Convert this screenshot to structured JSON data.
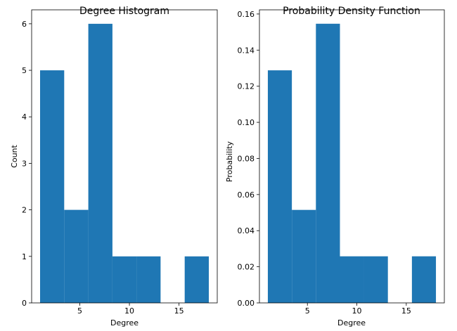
{
  "chart_data": [
    {
      "type": "bar",
      "title": "Degree Histogram",
      "xlabel": "Degree",
      "ylabel": "Count",
      "bin_edges": [
        1,
        3.43,
        5.86,
        8.29,
        10.71,
        13.14,
        15.57,
        18
      ],
      "values": [
        5,
        2,
        6,
        1,
        1,
        0,
        1
      ],
      "xlim": [
        0.15,
        18.85
      ],
      "ylim": [
        0,
        6.3
      ],
      "xticks": [
        5,
        10,
        15
      ],
      "yticks": [
        0,
        1,
        2,
        3,
        4,
        5,
        6
      ],
      "xtick_labels": [
        "5",
        "10",
        "15"
      ],
      "ytick_labels": [
        "0",
        "1",
        "2",
        "3",
        "4",
        "5",
        "6"
      ],
      "color": "#1f77b4",
      "grid": false
    },
    {
      "type": "bar",
      "title": "Probability Density Function",
      "xlabel": "Degree",
      "ylabel": "Probability",
      "bin_edges": [
        1,
        3.43,
        5.86,
        8.29,
        10.71,
        13.14,
        15.57,
        18
      ],
      "values": [
        0.1288,
        0.0515,
        0.1546,
        0.0258,
        0.0258,
        0,
        0.0258
      ],
      "xlim": [
        0.15,
        18.85
      ],
      "ylim": [
        0,
        0.1623
      ],
      "xticks": [
        5,
        10,
        15
      ],
      "yticks": [
        0,
        0.02,
        0.04,
        0.06,
        0.08,
        0.1,
        0.12,
        0.14,
        0.16
      ],
      "xtick_labels": [
        "5",
        "10",
        "15"
      ],
      "ytick_labels": [
        "0.00",
        "0.02",
        "0.04",
        "0.06",
        "0.08",
        "0.10",
        "0.12",
        "0.14",
        "0.16"
      ],
      "color": "#1f77b4",
      "grid": false
    }
  ]
}
